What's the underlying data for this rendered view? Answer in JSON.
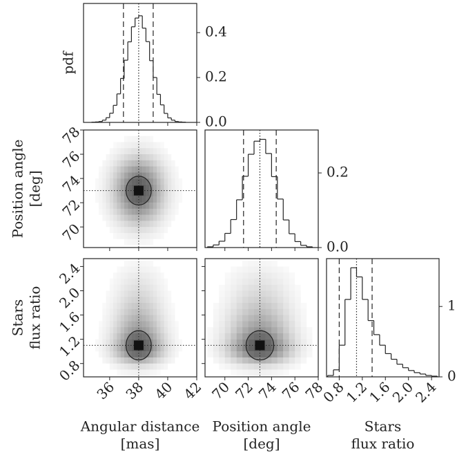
{
  "chart_data": {
    "type": "corner",
    "diagonal_ylabel": "pdf",
    "variables": [
      {
        "label": [
          "Angular distance",
          "[mas]"
        ],
        "lim": [
          34.2,
          42
        ],
        "ticks": [
          36,
          38,
          40,
          42
        ],
        "quantiles": [
          36.95,
          38.0,
          39.0
        ],
        "hist": {
          "bins": [
            34.75,
            35.0,
            35.25,
            35.5,
            35.75,
            36.0,
            36.25,
            36.5,
            36.75,
            37.0,
            37.25,
            37.5,
            37.75,
            38.0,
            38.25,
            38.5,
            38.75,
            39.0,
            39.25,
            39.5,
            39.75,
            40.0,
            40.25,
            40.5,
            40.75,
            41.0,
            41.25
          ],
          "values": [
            0.001,
            0.002,
            0.004,
            0.01,
            0.021,
            0.041,
            0.076,
            0.127,
            0.196,
            0.277,
            0.359,
            0.426,
            0.465,
            0.475,
            0.42,
            0.36,
            0.275,
            0.2,
            0.125,
            0.078,
            0.04,
            0.02,
            0.01,
            0.004,
            0.002,
            0.001
          ],
          "ylim": [
            0,
            0.53
          ],
          "yticks": [
            {
              "value": 0,
              "label": "0.0"
            },
            0.2,
            0.4
          ]
        }
      },
      {
        "label": [
          "Position angle",
          "[deg]"
        ],
        "lim": [
          68.3,
          78
        ],
        "ticks": [
          70,
          72,
          74,
          76,
          78
        ],
        "quantiles": [
          71.6,
          73.0,
          74.4
        ],
        "hist": {
          "bins": [
            68.5,
            69.0,
            69.5,
            70.0,
            70.5,
            71.0,
            71.5,
            72.0,
            72.5,
            73.0,
            73.5,
            74.0,
            74.5,
            75.0,
            75.5,
            76.0,
            76.5,
            77.0,
            77.5
          ],
          "values": [
            0.002,
            0.007,
            0.017,
            0.038,
            0.075,
            0.128,
            0.191,
            0.25,
            0.285,
            0.29,
            0.252,
            0.19,
            0.13,
            0.074,
            0.037,
            0.016,
            0.006,
            0.002
          ],
          "ylim": [
            0,
            0.315
          ],
          "yticks": [
            {
              "value": 0,
              "label": "0.0"
            },
            0.2
          ]
        }
      },
      {
        "label": [
          "Stars",
          "flux ratio"
        ],
        "lim": [
          0.58,
          2.53
        ],
        "ticks": [
          0.8,
          1.2,
          1.6,
          {
            "value": 2,
            "label": "2.0"
          },
          2.4
        ],
        "quantiles": [
          0.8,
          1.1,
          1.37
        ],
        "hist": {
          "bins": [
            0.6,
            0.7,
            0.8,
            0.9,
            1.0,
            1.1,
            1.2,
            1.3,
            1.4,
            1.5,
            1.6,
            1.7,
            1.8,
            1.9,
            2.0,
            2.1,
            2.2,
            2.3,
            2.4,
            2.5
          ],
          "values": [
            0.02,
            0.1,
            0.45,
            1.1,
            1.55,
            1.42,
            1.1,
            0.8,
            0.6,
            0.45,
            0.33,
            0.25,
            0.18,
            0.13,
            0.09,
            0.06,
            0.04,
            0.02,
            0.01
          ],
          "ylim": [
            0,
            1.68
          ],
          "yticks": [
            0,
            1
          ]
        }
      }
    ]
  }
}
